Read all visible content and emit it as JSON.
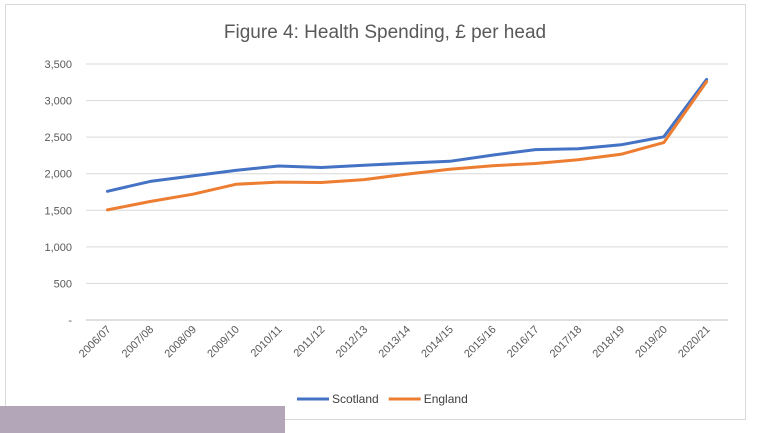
{
  "chart_data": {
    "type": "line",
    "title": "Figure 4: Health Spending, £ per head",
    "xlabel": "",
    "ylabel": "",
    "categories": [
      "2006/07",
      "2007/08",
      "2008/09",
      "2009/10",
      "2010/11",
      "2011/12",
      "2012/13",
      "2013/14",
      "2014/15",
      "2015/16",
      "2016/17",
      "2017/18",
      "2018/19",
      "2019/20",
      "2020/21"
    ],
    "ylim": [
      0,
      3500
    ],
    "yticks": [
      0,
      500,
      1000,
      1500,
      2000,
      2500,
      3000,
      3500
    ],
    "ytick_labels": [
      "-",
      "500",
      "1,000",
      "1,500",
      "2,000",
      "2,500",
      "3,000",
      "3,500"
    ],
    "grid": true,
    "legend_position": "bottom",
    "series": [
      {
        "name": "Scotland",
        "color": "#4472c4",
        "values": [
          1760,
          1895,
          1970,
          2045,
          2105,
          2085,
          2115,
          2145,
          2170,
          2255,
          2330,
          2340,
          2395,
          2505,
          3290
        ]
      },
      {
        "name": "England",
        "color": "#ed7d31",
        "values": [
          1505,
          1620,
          1720,
          1855,
          1885,
          1880,
          1920,
          1995,
          2060,
          2110,
          2140,
          2190,
          2265,
          2425,
          3260
        ]
      }
    ]
  }
}
